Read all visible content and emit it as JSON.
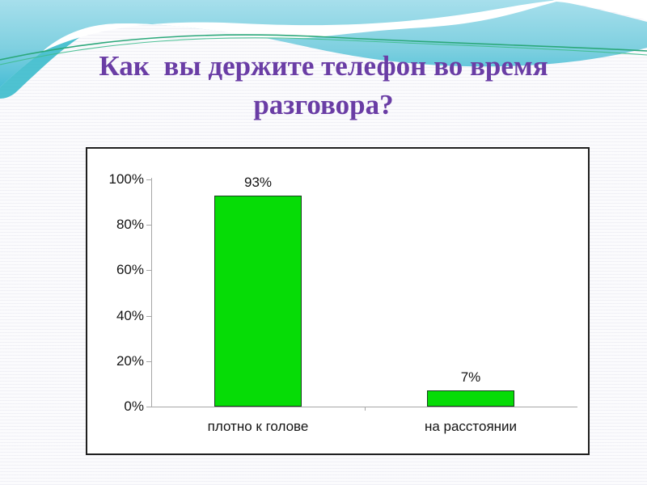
{
  "slide": {
    "title": "Как  вы держите телефон во время разговора?"
  },
  "chart_data": {
    "type": "bar",
    "title": "",
    "categories": [
      "плотно к голове",
      "на расстоянии"
    ],
    "values": [
      93,
      7
    ],
    "value_labels": [
      "93%",
      "7%"
    ],
    "xlabel": "",
    "ylabel": "",
    "ylim": [
      0,
      100
    ],
    "y_ticks": [
      {
        "label": "0%",
        "value": 0
      },
      {
        "label": "20%",
        "value": 20
      },
      {
        "label": "40%",
        "value": 40
      },
      {
        "label": "60%",
        "value": 60
      },
      {
        "label": "80%",
        "value": 80
      },
      {
        "label": "100%",
        "value": 100
      }
    ],
    "grid": false,
    "legend": false,
    "bar_color": "#06dc06",
    "bar_border_color": "#15401c",
    "axis_color": "#a6a6a6",
    "plot_background": "#ffffff"
  },
  "colors": {
    "title_text": "#6a3da5",
    "wave_top": "#a7dfec",
    "wave_mid": "#6fcbdd",
    "wave_deep": "#2fb7c9",
    "accent_line_green": "#2ba87a",
    "chart_frame_border": "#1f1f1f"
  }
}
